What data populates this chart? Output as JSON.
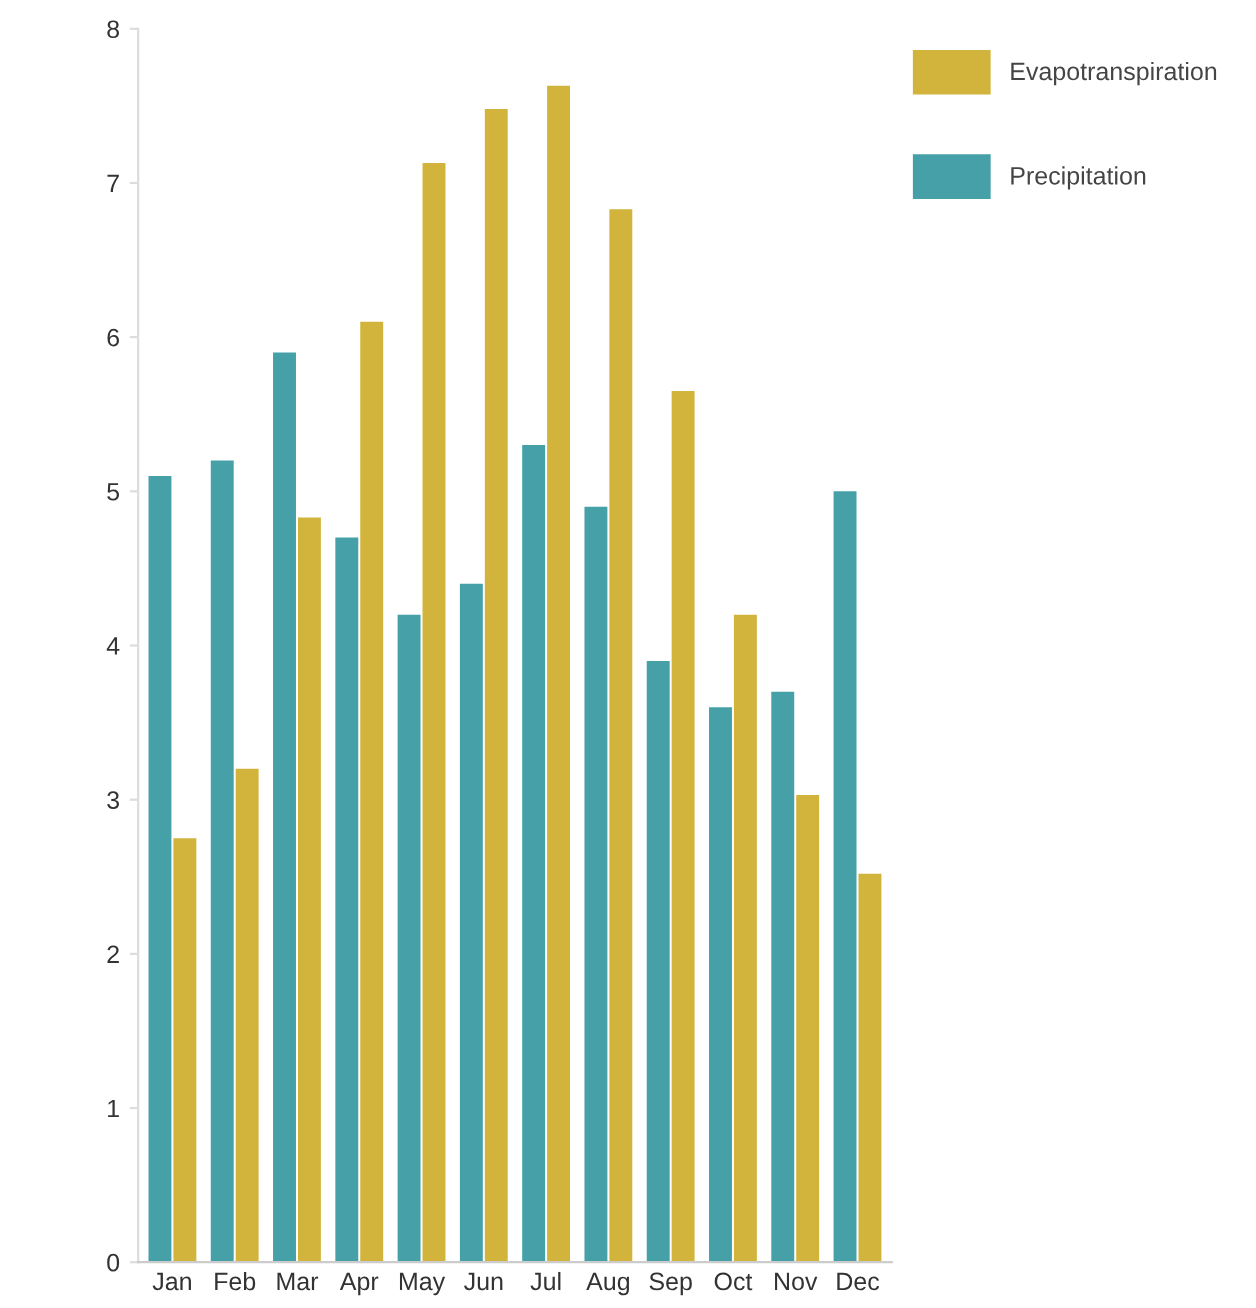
{
  "chart_data": {
    "type": "bar",
    "categories": [
      "Jan",
      "Feb",
      "Mar",
      "Apr",
      "May",
      "Jun",
      "Jul",
      "Aug",
      "Sep",
      "Oct",
      "Nov",
      "Dec"
    ],
    "series": [
      {
        "name": "Precipitation",
        "color": "#45a0a8",
        "values": [
          5.1,
          5.2,
          5.9,
          4.7,
          4.2,
          4.4,
          5.3,
          4.9,
          3.9,
          3.6,
          3.7,
          5.0
        ]
      },
      {
        "name": "Evapotranspiration",
        "color": "#d2b43c",
        "values": [
          2.75,
          3.2,
          4.83,
          6.1,
          7.13,
          7.48,
          7.63,
          6.83,
          5.65,
          4.2,
          3.03,
          2.52
        ]
      }
    ],
    "ylim": [
      0,
      8
    ],
    "yticks": [
      0,
      1,
      2,
      3,
      4,
      5,
      6,
      7,
      8
    ],
    "grid": false,
    "legend": "top right"
  }
}
